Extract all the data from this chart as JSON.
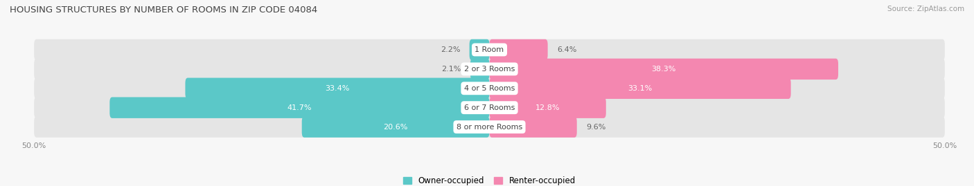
{
  "title": "HOUSING STRUCTURES BY NUMBER OF ROOMS IN ZIP CODE 04084",
  "source": "Source: ZipAtlas.com",
  "categories": [
    "1 Room",
    "2 or 3 Rooms",
    "4 or 5 Rooms",
    "6 or 7 Rooms",
    "8 or more Rooms"
  ],
  "owner_values": [
    2.2,
    2.1,
    33.4,
    41.7,
    20.6
  ],
  "renter_values": [
    6.4,
    38.3,
    33.1,
    12.8,
    9.6
  ],
  "owner_color": "#5BC8C8",
  "renter_color": "#F487B0",
  "bg_color": "#F7F7F7",
  "bar_bg_color": "#E5E5E5",
  "xlim": 50.0,
  "title_fontsize": 9.5,
  "source_fontsize": 7.5,
  "label_fontsize": 8,
  "tick_fontsize": 8,
  "legend_fontsize": 8.5,
  "bar_height": 0.55,
  "n_bars": 5
}
